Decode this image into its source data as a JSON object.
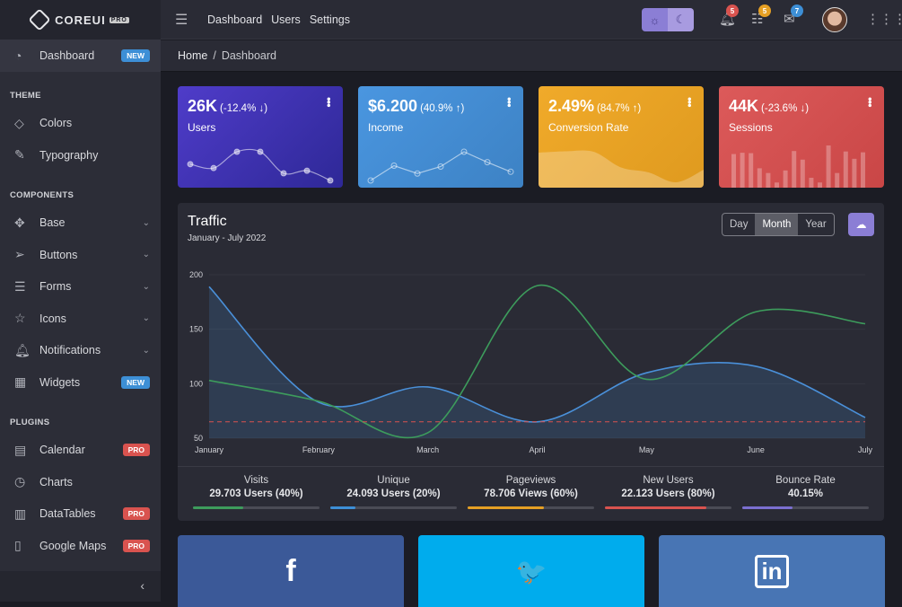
{
  "brand": {
    "name": "COREUI",
    "tag": "PRO"
  },
  "sidebar": {
    "dashboard": {
      "label": "Dashboard",
      "badge": "NEW"
    },
    "sections": [
      "THEME",
      "COMPONENTS",
      "PLUGINS"
    ],
    "theme": [
      {
        "label": "Colors",
        "icon": "drop-icon"
      },
      {
        "label": "Typography",
        "icon": "pencil-icon"
      }
    ],
    "components": [
      {
        "label": "Base",
        "icon": "puzzle-icon"
      },
      {
        "label": "Buttons",
        "icon": "cursor-icon"
      },
      {
        "label": "Forms",
        "icon": "notes-icon"
      },
      {
        "label": "Icons",
        "icon": "star-icon"
      },
      {
        "label": "Notifications",
        "icon": "bell-icon"
      },
      {
        "label": "Widgets",
        "icon": "calculator-icon",
        "badge": "NEW"
      }
    ],
    "plugins": [
      {
        "label": "Calendar",
        "badge": "PRO"
      },
      {
        "label": "Charts"
      },
      {
        "label": "DataTables",
        "badge": "PRO"
      },
      {
        "label": "Google Maps",
        "badge": "PRO"
      }
    ]
  },
  "header": {
    "nav": [
      "Dashboard",
      "Users",
      "Settings"
    ],
    "notifications": "5",
    "tasks": "5",
    "messages": "7"
  },
  "breadcrumb": {
    "home": "Home",
    "current": "Dashboard"
  },
  "widgets": [
    {
      "value": "26K",
      "change": "(-12.4% ↓)",
      "label": "Users",
      "color": "#4332b8",
      "spark": [
        65,
        59,
        84,
        84,
        51,
        55,
        40
      ]
    },
    {
      "value": "$6.200",
      "change": "(40.9% ↑)",
      "label": "Income",
      "color": "#3f8fd6",
      "spark": [
        1,
        18,
        9,
        17,
        34,
        22,
        11
      ]
    },
    {
      "value": "2.49%",
      "change": "(84.7% ↑)",
      "label": "Conversion Rate",
      "color": "#e6a024",
      "spark": [
        78,
        81,
        80,
        45,
        34,
        12,
        40
      ]
    },
    {
      "value": "44K",
      "change": "(-23.6% ↓)",
      "label": "Sessions",
      "color": "#d24f4f",
      "spark": [
        78,
        81,
        80,
        45,
        34,
        12,
        40,
        85,
        65,
        23,
        12,
        98,
        34,
        84,
        67,
        82
      ]
    }
  ],
  "traffic": {
    "title": "Traffic",
    "subtitle": "January - July 2022",
    "ranges": [
      "Day",
      "Month",
      "Year"
    ],
    "selected": "Month"
  },
  "chart_data": {
    "type": "line",
    "x": [
      "January",
      "February",
      "March",
      "April",
      "May",
      "June",
      "July"
    ],
    "ylim": [
      50,
      200
    ],
    "yticks": [
      50,
      100,
      150,
      200
    ],
    "grid": true,
    "series": [
      {
        "color": "#4a90d9",
        "fill": true,
        "values": [
          189,
          83,
          97,
          65,
          110,
          116,
          69
        ]
      },
      {
        "color": "#3d9c5c",
        "fill": false,
        "values": [
          103,
          84,
          55,
          190,
          104,
          166,
          155
        ]
      }
    ],
    "threshold": {
      "value": 65,
      "color": "#d9534f",
      "style": "dashed"
    }
  },
  "stats": [
    {
      "label": "Visits",
      "value": "29.703 Users (40%)",
      "percent": 40,
      "color": "#3d9c5c"
    },
    {
      "label": "Unique",
      "value": "24.093 Users (20%)",
      "percent": 20,
      "color": "#3d8fd6"
    },
    {
      "label": "Pageviews",
      "value": "78.706 Views (60%)",
      "percent": 60,
      "color": "#e6a024"
    },
    {
      "label": "New Users",
      "value": "22.123 Users (80%)",
      "percent": 80,
      "color": "#d9534f"
    },
    {
      "label": "Bounce Rate",
      "value": "40.15%",
      "percent": 40,
      "color": "#7b6fd0"
    }
  ],
  "social": [
    {
      "icon": "facebook-icon",
      "glyph": "f",
      "color": "#3b5998"
    },
    {
      "icon": "twitter-icon",
      "glyph": "🐦",
      "color": "#00aced"
    },
    {
      "icon": "linkedin-icon",
      "glyph": "in",
      "color": "#4875b4"
    }
  ]
}
